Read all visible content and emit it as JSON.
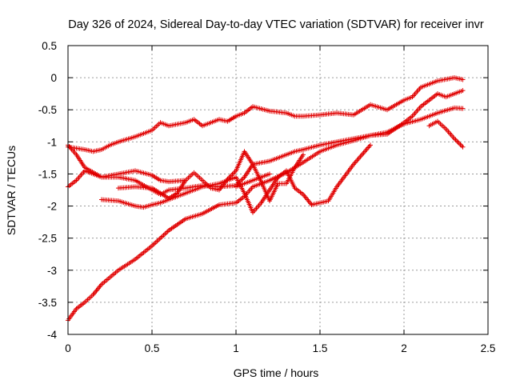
{
  "chart_data": {
    "type": "scatter",
    "title": "Day 326 of 2024, Sidereal Day-to-day VTEC variation (SDTVAR) for receiver invr",
    "xlabel": "GPS time / hours",
    "ylabel": "SDTVAR / TECUs",
    "xlim": [
      0,
      2.5
    ],
    "ylim": [
      -4,
      0.5
    ],
    "x_ticks": [
      "0",
      "0.5",
      "1",
      "1.5",
      "2",
      "2.5"
    ],
    "y_ticks": [
      "0.5",
      "0",
      "-0.5",
      "-1",
      "-1.5",
      "-2",
      "-2.5",
      "-3",
      "-3.5",
      "-4"
    ],
    "grid": true,
    "marker": "plus",
    "marker_color": "#e00000",
    "series": [
      {
        "x": [
          0.0,
          0.05,
          0.1,
          0.15,
          0.2,
          0.3,
          0.4,
          0.5,
          0.6,
          0.7,
          0.8,
          0.9,
          1.0,
          1.05,
          1.1,
          1.2,
          1.3,
          1.4,
          1.5,
          1.6,
          1.7,
          1.8,
          1.9,
          2.0,
          2.1,
          2.2,
          2.3,
          2.35
        ],
        "y": [
          -3.78,
          -3.6,
          -3.5,
          -3.38,
          -3.22,
          -3.0,
          -2.83,
          -2.62,
          -2.38,
          -2.2,
          -2.12,
          -1.98,
          -1.95,
          -1.85,
          -1.7,
          -1.6,
          -1.48,
          -1.32,
          -1.15,
          -1.05,
          -0.98,
          -0.9,
          -0.85,
          -0.72,
          -0.65,
          -0.55,
          -0.47,
          -0.48
        ]
      },
      {
        "x": [
          0.0,
          0.05,
          0.1,
          0.15,
          0.2,
          0.25,
          0.3,
          0.4,
          0.5,
          0.55,
          0.6,
          0.7,
          0.75,
          0.8,
          0.9,
          0.95,
          1.0,
          1.05,
          1.1,
          1.2,
          1.3,
          1.35,
          1.4,
          1.5,
          1.6,
          1.7,
          1.8,
          1.9,
          2.0,
          2.05,
          2.1,
          2.15,
          2.2,
          2.3,
          2.35
        ],
        "y": [
          -1.08,
          -1.1,
          -1.12,
          -1.15,
          -1.12,
          -1.05,
          -1.0,
          -0.92,
          -0.82,
          -0.7,
          -0.75,
          -0.7,
          -0.65,
          -0.75,
          -0.65,
          -0.68,
          -0.6,
          -0.55,
          -0.45,
          -0.52,
          -0.55,
          -0.6,
          -0.6,
          -0.58,
          -0.55,
          -0.58,
          -0.42,
          -0.5,
          -0.35,
          -0.3,
          -0.15,
          -0.1,
          -0.05,
          0.0,
          -0.03
        ]
      },
      {
        "x": [
          0.0,
          0.05,
          0.1,
          0.2,
          0.3,
          0.4,
          0.5,
          0.55,
          0.6,
          0.7,
          0.8,
          0.9,
          1.0,
          1.05,
          1.1,
          1.2,
          1.25,
          1.3,
          1.35,
          1.4,
          1.5,
          1.6,
          1.7,
          1.8,
          1.9,
          2.0,
          2.05,
          2.1,
          2.15,
          2.2,
          2.25,
          2.3,
          2.35
        ],
        "y": [
          -1.05,
          -1.2,
          -1.4,
          -1.55,
          -1.55,
          -1.6,
          -1.75,
          -1.82,
          -1.75,
          -1.72,
          -1.68,
          -1.7,
          -1.68,
          -1.55,
          -1.35,
          -1.3,
          -1.25,
          -1.2,
          -1.15,
          -1.12,
          -1.05,
          -1.0,
          -0.95,
          -0.9,
          -0.88,
          -0.7,
          -0.6,
          -0.45,
          -0.35,
          -0.25,
          -0.3,
          -0.25,
          -0.2
        ]
      },
      {
        "x": [
          0.0,
          0.05,
          0.1,
          0.2,
          0.3,
          0.4,
          0.5,
          0.55,
          0.6,
          0.7
        ],
        "y": [
          -1.7,
          -1.6,
          -1.45,
          -1.55,
          -1.5,
          -1.45,
          -1.52,
          -1.6,
          -1.62,
          -1.6
        ]
      },
      {
        "x": [
          0.2,
          0.3,
          0.4,
          0.45,
          0.5,
          0.55,
          0.6,
          0.7,
          0.8,
          0.9,
          1.0,
          1.05,
          1.1,
          1.15,
          1.2,
          1.25,
          1.3,
          1.35,
          1.4,
          1.45,
          1.5,
          1.55,
          1.6,
          1.7,
          1.8
        ],
        "y": [
          -1.9,
          -1.92,
          -2.0,
          -2.02,
          -1.98,
          -1.95,
          -1.9,
          -1.8,
          -1.7,
          -1.65,
          -1.55,
          -1.8,
          -2.1,
          -1.95,
          -1.75,
          -1.55,
          -1.45,
          -1.72,
          -1.82,
          -1.98,
          -1.95,
          -1.92,
          -1.7,
          -1.35,
          -1.05
        ]
      },
      {
        "x": [
          0.3,
          0.4,
          0.5,
          0.55,
          0.6,
          0.65,
          0.7,
          0.75,
          0.8,
          0.85,
          0.9,
          0.95,
          1.0,
          1.05,
          1.1,
          1.15,
          1.2,
          1.25,
          1.3,
          1.35,
          1.4
        ],
        "y": [
          -1.72,
          -1.7,
          -1.72,
          -1.8,
          -1.88,
          -1.8,
          -1.6,
          -1.48,
          -1.6,
          -1.72,
          -1.75,
          -1.58,
          -1.45,
          -1.15,
          -1.35,
          -1.62,
          -1.92,
          -1.65,
          -1.65,
          -1.4,
          -1.2
        ]
      },
      {
        "x": [
          1.0,
          1.1,
          1.2
        ],
        "y": [
          -1.7,
          -1.6,
          -1.5
        ]
      },
      {
        "x": [
          2.15,
          2.2,
          2.25,
          2.3,
          2.35
        ],
        "y": [
          -0.75,
          -0.68,
          -0.8,
          -0.95,
          -1.08
        ]
      }
    ]
  }
}
